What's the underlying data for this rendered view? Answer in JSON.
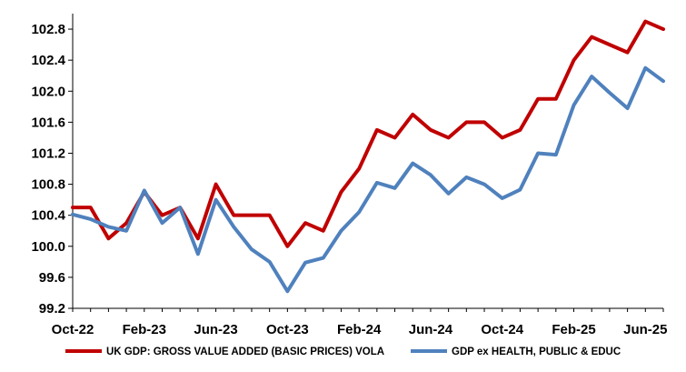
{
  "chart_data": {
    "type": "line",
    "title": "",
    "xlabel": "",
    "ylabel": "",
    "ylim": [
      99.2,
      103.0
    ],
    "yticks": [
      99.2,
      99.6,
      100.0,
      100.4,
      100.8,
      101.2,
      101.6,
      102.0,
      102.4,
      102.8
    ],
    "ytick_labels": [
      "99.2",
      "99.6",
      "100.0",
      "100.4",
      "100.8",
      "101.2",
      "101.6",
      "102.0",
      "102.4",
      "102.8"
    ],
    "x": [
      "Oct-22",
      "Nov-22",
      "Dec-22",
      "Jan-23",
      "Feb-23",
      "Mar-23",
      "Apr-23",
      "May-23",
      "Jun-23",
      "Jul-23",
      "Aug-23",
      "Sep-23",
      "Oct-23",
      "Nov-23",
      "Dec-23",
      "Jan-24",
      "Feb-24",
      "Mar-24",
      "Apr-24",
      "May-24",
      "Jun-24",
      "Jul-24",
      "Aug-24",
      "Sep-24",
      "Oct-24",
      "Nov-24",
      "Dec-24",
      "Jan-25",
      "Feb-25",
      "Mar-25",
      "Apr-25",
      "May-25",
      "Jun-25",
      "Jul-25"
    ],
    "xtick_labels": [
      "Oct-22",
      "Feb-23",
      "Jun-23",
      "Oct-23",
      "Feb-24",
      "Jun-24",
      "Oct-24",
      "Feb-25",
      "Jun-25"
    ],
    "xtick_indices": [
      0,
      4,
      8,
      12,
      16,
      20,
      24,
      28,
      32
    ],
    "grid": false,
    "legend_position": "bottom",
    "series": [
      {
        "name": "UK GDP: GROSS VALUE ADDED (BASIC PRICES) VOLA",
        "color": "#c00000",
        "values": [
          100.5,
          100.5,
          100.1,
          100.3,
          100.7,
          100.4,
          100.5,
          100.1,
          100.8,
          100.4,
          100.4,
          100.4,
          100.0,
          100.3,
          100.2,
          100.7,
          101.0,
          101.5,
          101.4,
          101.7,
          101.5,
          101.4,
          101.6,
          101.6,
          101.4,
          101.5,
          101.9,
          101.9,
          102.4,
          102.7,
          102.6,
          102.5,
          102.9,
          102.8
        ]
      },
      {
        "name": "GDP ex HEALTH, PUBLIC & EDUC",
        "color": "#4f81bd",
        "values": [
          100.41,
          100.35,
          100.25,
          100.2,
          100.72,
          100.3,
          100.5,
          99.9,
          100.6,
          100.25,
          99.96,
          99.8,
          99.42,
          99.79,
          99.85,
          100.2,
          100.44,
          100.82,
          100.75,
          101.07,
          100.92,
          100.68,
          100.89,
          100.8,
          100.62,
          100.73,
          101.2,
          101.18,
          101.82,
          102.19,
          101.98,
          101.78,
          102.3,
          102.13
        ]
      }
    ]
  }
}
